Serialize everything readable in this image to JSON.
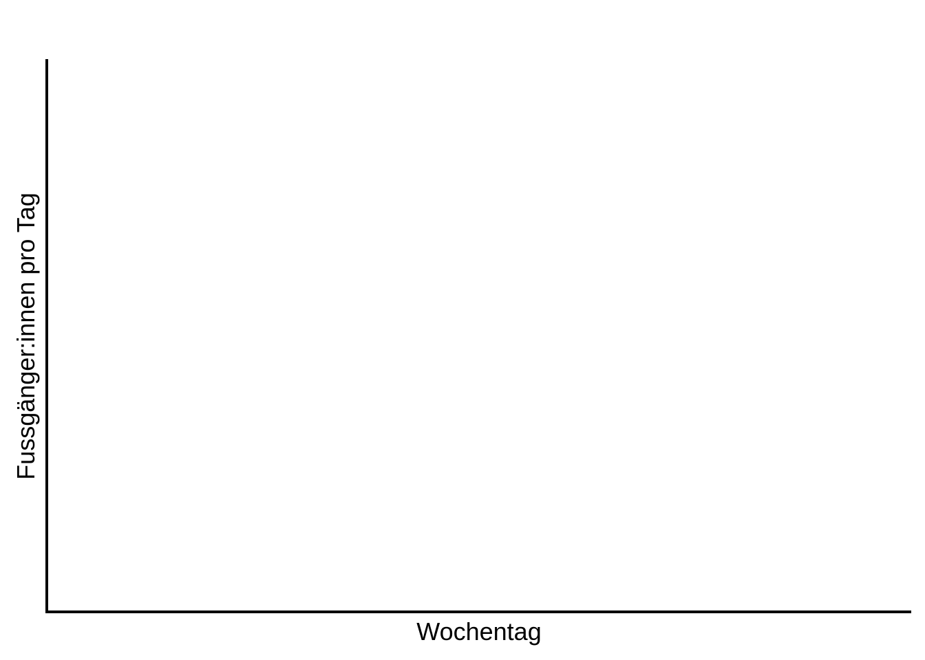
{
  "chart_data": {
    "type": "bar",
    "title": "",
    "xlabel": "Wochentag",
    "ylabel": "Fussgänger:innen pro Tag",
    "categories": [],
    "values": [],
    "grid": false,
    "legend": "none",
    "axis_color": "#000000",
    "background": "#ffffff"
  }
}
